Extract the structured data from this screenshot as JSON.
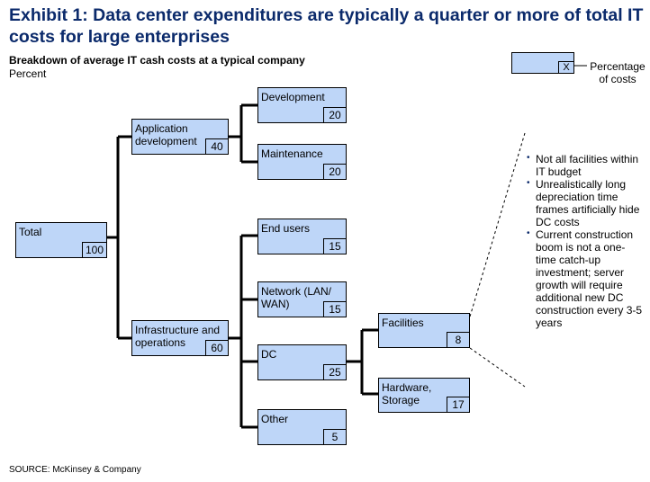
{
  "header": {
    "title": "Exhibit 1: Data center expenditures are typically a quarter or more of total IT costs for large enterprises",
    "subtitle": "Breakdown of average IT cash costs at a typical company",
    "unit": "Percent"
  },
  "legend": {
    "marker": "X",
    "text": "Percentage of costs"
  },
  "tree": {
    "total": {
      "label": "Total",
      "value": "100"
    },
    "app_dev": {
      "label": "Application development",
      "value": "40"
    },
    "development": {
      "label": "Development",
      "value": "20"
    },
    "maintenance": {
      "label": "Maintenance",
      "value": "20"
    },
    "infra": {
      "label": "Infrastructure and operations",
      "value": "60"
    },
    "end_users": {
      "label": "End users",
      "value": "15"
    },
    "network": {
      "label": "Network (LAN/ WAN)",
      "value": "15"
    },
    "dc": {
      "label": "DC",
      "value": "25"
    },
    "other": {
      "label": "Other",
      "value": "5"
    },
    "facilities": {
      "label": "Facilities",
      "value": "8"
    },
    "hardware": {
      "label": "Hardware, Storage",
      "value": "17"
    }
  },
  "notes": [
    "Not all facilities within IT budget",
    "Unrealistically long depreciation time frames artificially hide DC costs",
    "Current construction boom is not a one-time catch-up investment; server growth will require additional new DC construction every 3-5 years"
  ],
  "source": "SOURCE: McKinsey & Company",
  "colors": {
    "box_fill": "#bed6f8",
    "title": "#0b2a6b"
  }
}
